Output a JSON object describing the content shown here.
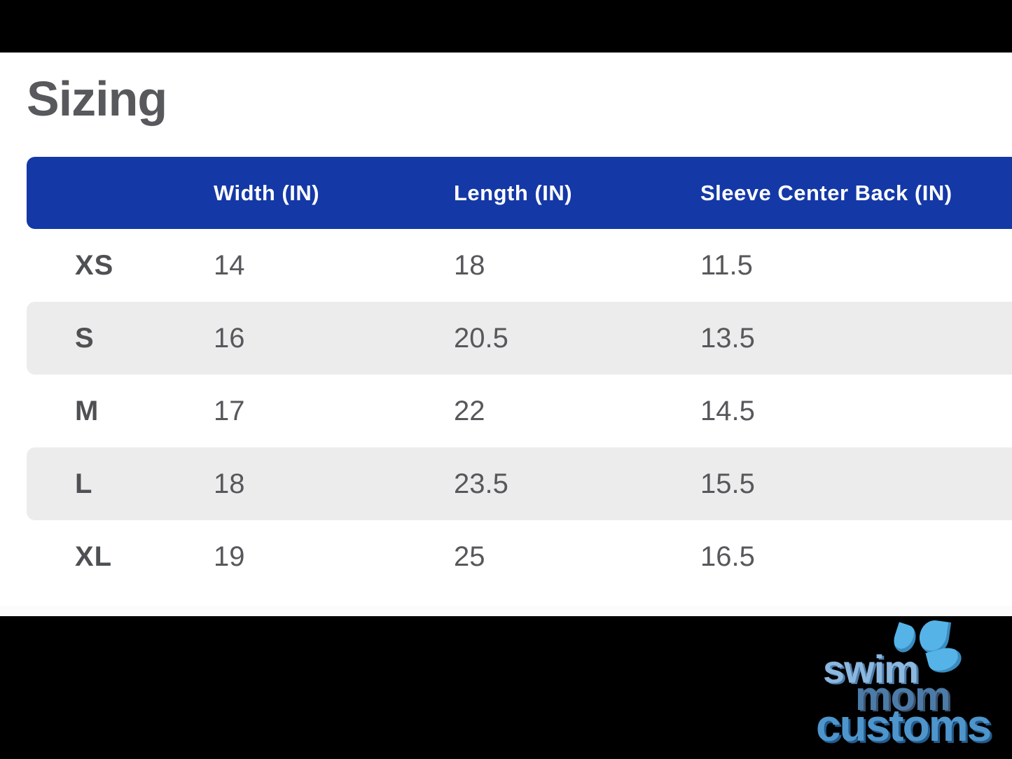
{
  "page": {
    "title": "Sizing"
  },
  "table": {
    "columns": [
      "",
      "Width (IN)",
      "Length (IN)",
      "Sleeve Center Back (IN)"
    ],
    "rows": [
      {
        "size": "XS",
        "width": "14",
        "length": "18",
        "sleeve": "11.5"
      },
      {
        "size": "S",
        "width": "16",
        "length": "20.5",
        "sleeve": "13.5"
      },
      {
        "size": "M",
        "width": "17",
        "length": "22",
        "sleeve": "14.5"
      },
      {
        "size": "L",
        "width": "18",
        "length": "23.5",
        "sleeve": "15.5"
      },
      {
        "size": "XL",
        "width": "19",
        "length": "25",
        "sleeve": "16.5"
      }
    ]
  },
  "logo": {
    "line1": "swim",
    "line2": "mom",
    "line3": "customs"
  },
  "colors": {
    "header_blue": "#1438a6",
    "row_shade_gray": "#edeced",
    "title_gray": "#58595c",
    "value_gray": "#57585b",
    "letterbox_black": "#000000",
    "logo_light_blue": "#8cb7de",
    "logo_mid_blue": "#4c7ba7",
    "logo_customs_blue": "#4e95cb",
    "logo_drop_blue": "#55b3e8"
  }
}
